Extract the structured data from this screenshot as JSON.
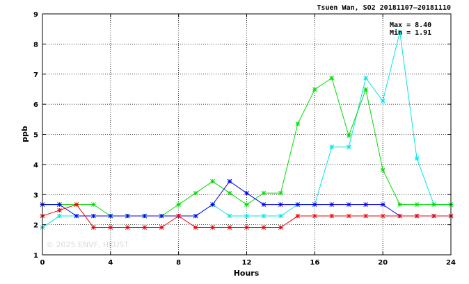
{
  "chart_data": {
    "type": "line",
    "title": "Tsuen Wan, SO2 20181107–20181110",
    "xlabel": "Hours",
    "ylabel": "ppb",
    "xlim": [
      0,
      24
    ],
    "ylim": [
      1,
      9
    ],
    "xticks": [
      0,
      4,
      8,
      12,
      16,
      20,
      24
    ],
    "yticks": [
      1,
      2,
      3,
      4,
      5,
      6,
      7,
      8,
      9
    ],
    "grid": true,
    "annotations": {
      "max_label": "Max = 8.40",
      "min_label": "Min = 1.91"
    },
    "watermark": "© 2025  ENVF, HKUST",
    "x": [
      0,
      1,
      2,
      3,
      4,
      5,
      6,
      7,
      8,
      9,
      10,
      11,
      12,
      13,
      14,
      15,
      16,
      17,
      18,
      19,
      20,
      21,
      22,
      23,
      24
    ],
    "series": [
      {
        "color": "#00e5e5",
        "values": [
          1.91,
          2.29,
          2.29,
          2.29,
          2.29,
          2.29,
          2.29,
          2.29,
          2.29,
          2.29,
          2.67,
          2.29,
          2.29,
          2.29,
          2.29,
          2.67,
          2.67,
          4.58,
          4.58,
          6.87,
          6.11,
          8.4,
          4.2,
          2.67,
          2.67
        ]
      },
      {
        "color": "#00dd00",
        "values": [
          2.67,
          2.67,
          2.67,
          2.67,
          2.29,
          2.29,
          2.29,
          2.29,
          2.67,
          3.05,
          3.44,
          3.05,
          2.67,
          3.05,
          3.05,
          5.35,
          6.49,
          6.87,
          4.96,
          6.49,
          3.82,
          2.67,
          2.67,
          2.67,
          2.67
        ]
      },
      {
        "color": "#0000ee",
        "values": [
          2.67,
          2.67,
          2.29,
          2.29,
          2.29,
          2.29,
          2.29,
          2.29,
          2.29,
          2.29,
          2.67,
          3.44,
          3.05,
          2.67,
          2.67,
          2.67,
          2.67,
          2.67,
          2.67,
          2.67,
          2.67,
          2.29,
          2.29,
          2.29,
          2.29
        ]
      },
      {
        "color": "#ee0000",
        "values": [
          2.29,
          2.48,
          2.67,
          1.91,
          1.91,
          1.91,
          1.91,
          1.91,
          2.29,
          1.91,
          1.91,
          1.91,
          1.91,
          1.91,
          1.91,
          2.29,
          2.29,
          2.29,
          2.29,
          2.29,
          2.29,
          2.29,
          2.29,
          2.29,
          2.29
        ]
      }
    ]
  }
}
